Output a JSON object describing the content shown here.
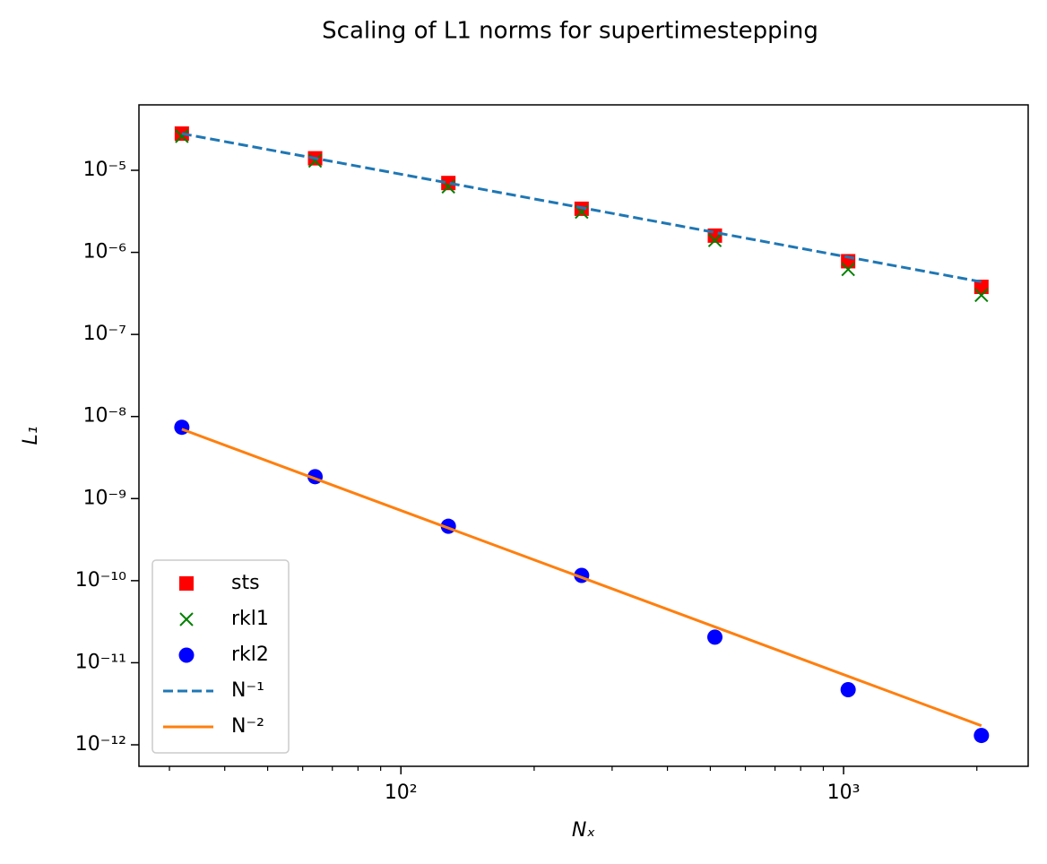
{
  "chart_data": {
    "type": "line",
    "title": "Scaling of L1 norms for supertimestepping",
    "xlabel": "Nₓ",
    "ylabel": "L₁",
    "xscale": "log",
    "yscale": "log",
    "x": [
      32,
      64,
      128,
      256,
      512,
      1024,
      2048
    ],
    "series": [
      {
        "name": "sts",
        "color": "#ff0000",
        "marker": "square",
        "linestyle": "none",
        "values": [
          2.8e-05,
          1.4e-05,
          7e-06,
          3.4e-06,
          1.6e-06,
          7.8e-07,
          3.8e-07
        ]
      },
      {
        "name": "rkl1",
        "color": "#008000",
        "marker": "x",
        "linestyle": "none",
        "values": [
          2.6e-05,
          1.3e-05,
          6.3e-06,
          3.1e-06,
          1.4e-06,
          6.2e-07,
          3e-07
        ]
      },
      {
        "name": "rkl2",
        "color": "#0000ff",
        "marker": "circle",
        "linestyle": "none",
        "values": [
          7.4e-09,
          1.85e-09,
          4.6e-10,
          1.16e-10,
          2.05e-11,
          4.7e-12,
          1.3e-12
        ]
      },
      {
        "name": "N⁻¹",
        "color": "#1f77b4",
        "marker": "none",
        "linestyle": "dashed",
        "values": [
          2.8e-05,
          1.4e-05,
          7e-06,
          3.5e-06,
          1.75e-06,
          8.75e-07,
          4.375e-07
        ]
      },
      {
        "name": "N⁻²",
        "color": "#ff7f0e",
        "marker": "none",
        "linestyle": "solid",
        "values": [
          7e-09,
          1.75e-09,
          4.375e-10,
          1.094e-10,
          2.734e-11,
          6.836e-12,
          1.709e-12
        ]
      }
    ],
    "xlim": [
      25.6,
      2612
    ],
    "ylim": [
      5.47e-13,
      6.27e-05
    ],
    "xticks": [
      {
        "value": 100,
        "label": "10²"
      },
      {
        "value": 1000,
        "label": "10³"
      }
    ],
    "xminorticks": [
      30,
      40,
      50,
      60,
      70,
      80,
      90,
      200,
      300,
      400,
      500,
      600,
      700,
      800,
      900,
      2000
    ],
    "yticks": [
      {
        "value": 1e-12,
        "label": "10⁻¹²"
      },
      {
        "value": 1e-11,
        "label": "10⁻¹¹"
      },
      {
        "value": 1e-10,
        "label": "10⁻¹⁰"
      },
      {
        "value": 1e-09,
        "label": "10⁻⁹"
      },
      {
        "value": 1e-08,
        "label": "10⁻⁸"
      },
      {
        "value": 1e-07,
        "label": "10⁻⁷"
      },
      {
        "value": 1e-06,
        "label": "10⁻⁶"
      },
      {
        "value": 1e-05,
        "label": "10⁻⁵"
      }
    ],
    "grid": false,
    "legend": "lower left"
  }
}
